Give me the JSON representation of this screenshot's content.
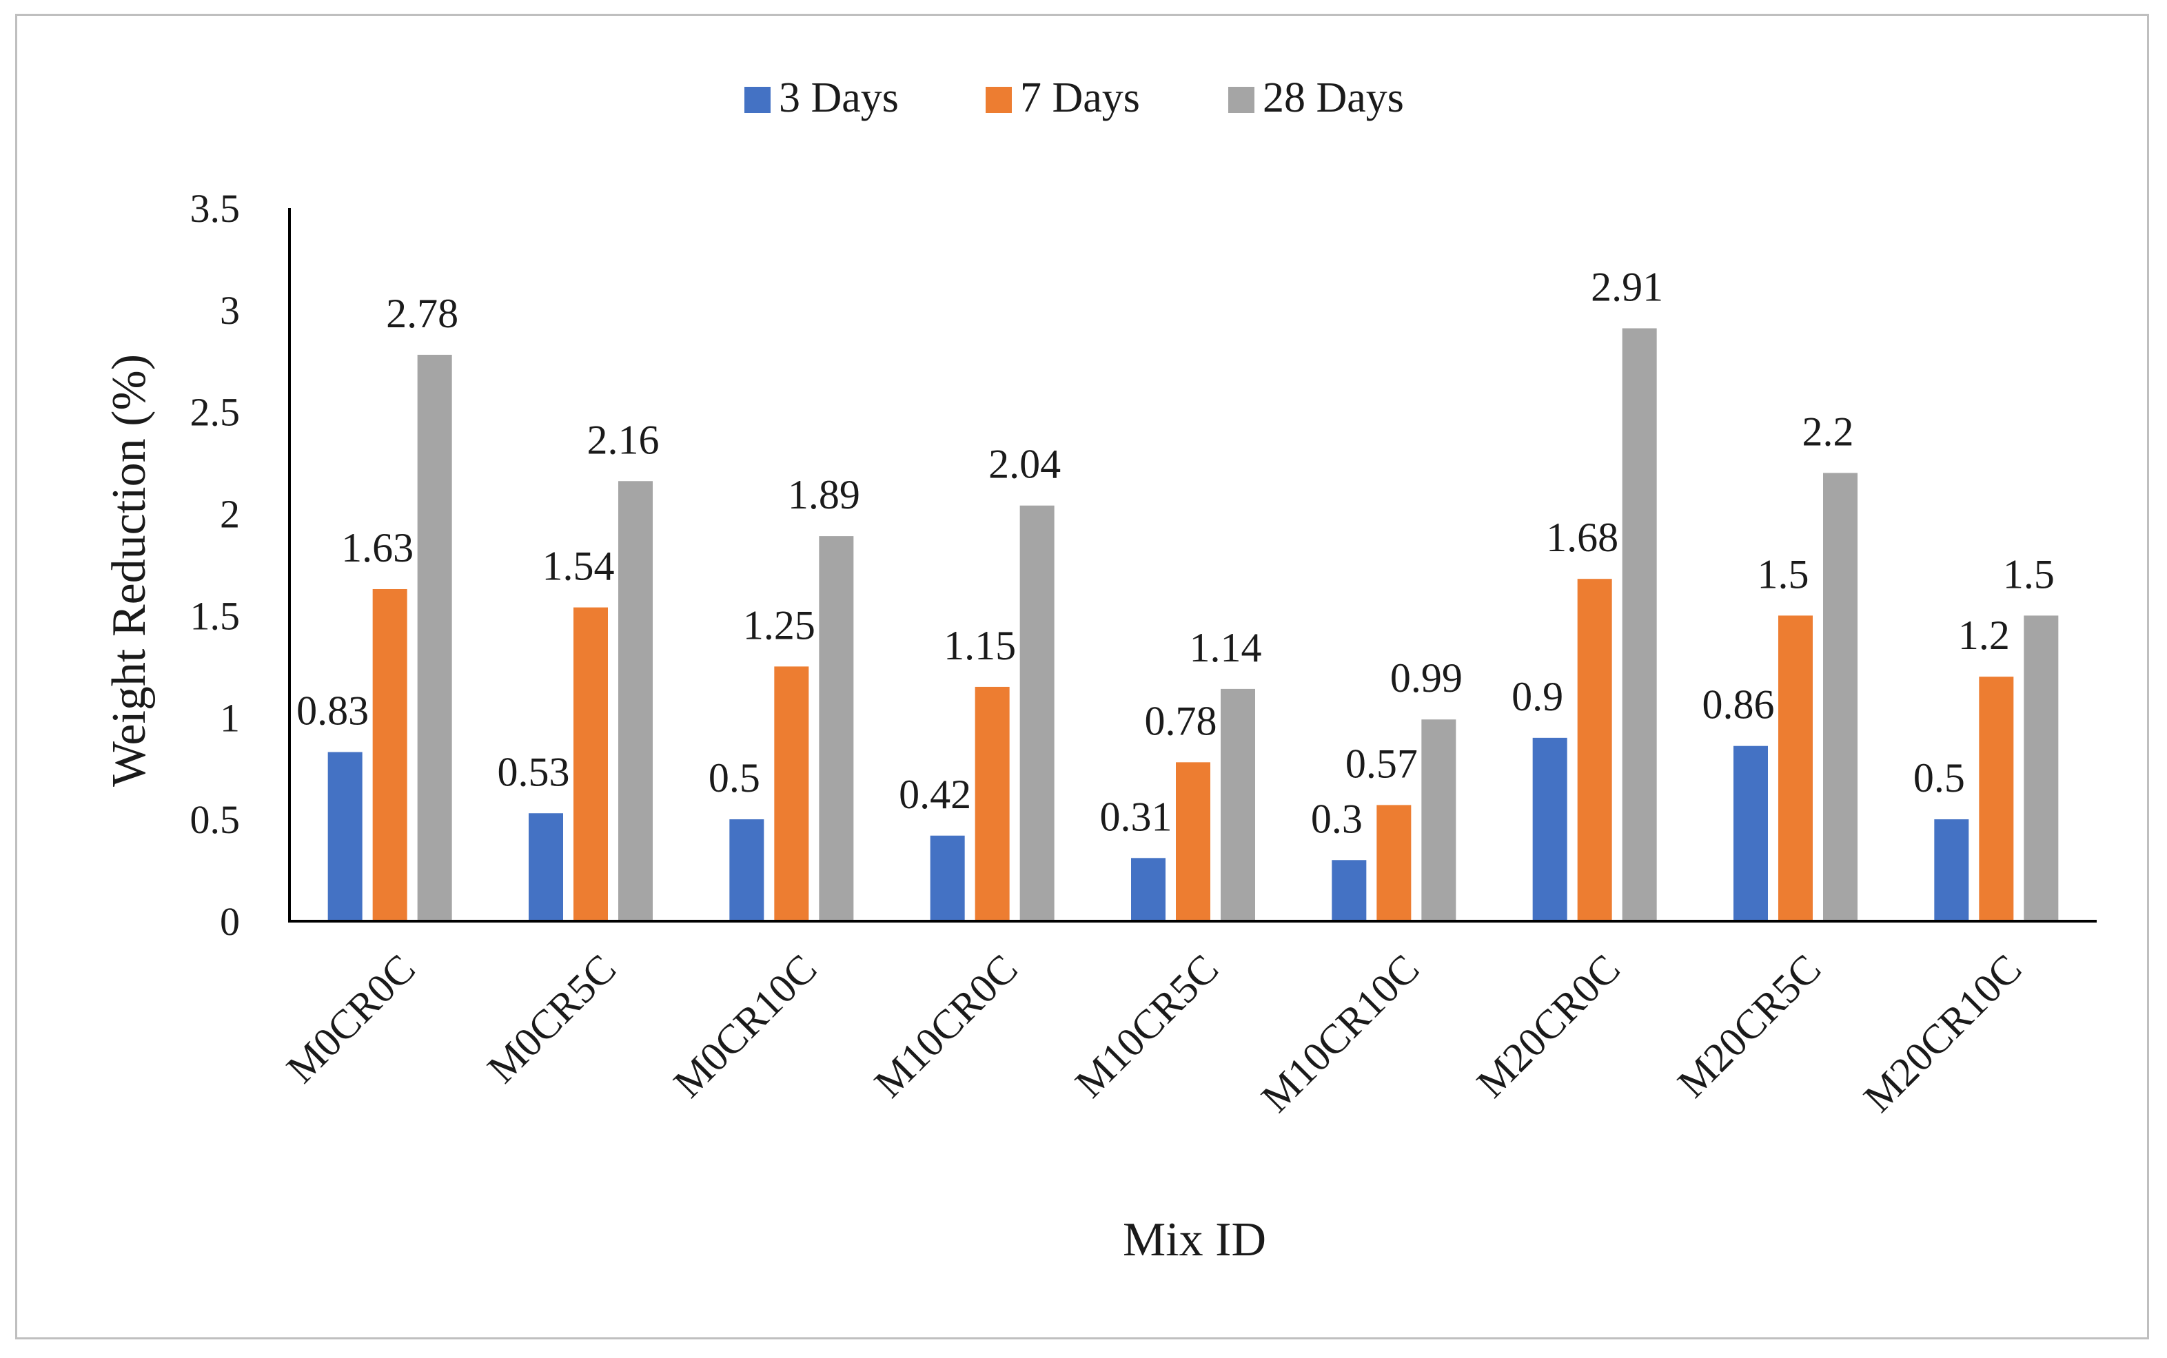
{
  "chart_data": {
    "type": "bar",
    "title": "",
    "xlabel": "Mix ID",
    "ylabel": "Weight Reduction (%)",
    "ylim": [
      0,
      3.5
    ],
    "yticks": [
      "0",
      "0.5",
      "1",
      "1.5",
      "2",
      "2.5",
      "3",
      "3.5"
    ],
    "grid": false,
    "legend_position": "top-center",
    "categories": [
      "M0CR0C",
      "M0CR5C",
      "M0CR10C",
      "M10CR0C",
      "M10CR5C",
      "M10CR10C",
      "M20CR0C",
      "M20CR5C",
      "M20CR10C"
    ],
    "series": [
      {
        "name": "3 Days",
        "color": "#4472c4",
        "values": [
          0.83,
          0.53,
          0.5,
          0.42,
          0.31,
          0.3,
          0.9,
          0.86,
          0.5
        ]
      },
      {
        "name": "7 Days",
        "color": "#ed7d31",
        "values": [
          1.63,
          1.54,
          1.25,
          1.15,
          0.78,
          0.57,
          1.68,
          1.5,
          1.2
        ]
      },
      {
        "name": "28 Days",
        "color": "#a5a5a5",
        "values": [
          2.78,
          2.16,
          1.89,
          2.04,
          1.14,
          0.99,
          2.91,
          2.2,
          1.5
        ]
      }
    ],
    "data_labels": [
      [
        "0.83",
        "0.53",
        "0.5",
        "0.42",
        "0.31",
        "0.3",
        "0.9",
        "0.86",
        "0.5"
      ],
      [
        "1.63",
        "1.54",
        "1.25",
        "1.15",
        "0.78",
        "0.57",
        "1.68",
        "1.5",
        "1.2"
      ],
      [
        "2.78",
        "2.16",
        "1.89",
        "2.04",
        "1.14",
        "0.99",
        "2.91",
        "2.2",
        "1.5"
      ]
    ]
  }
}
